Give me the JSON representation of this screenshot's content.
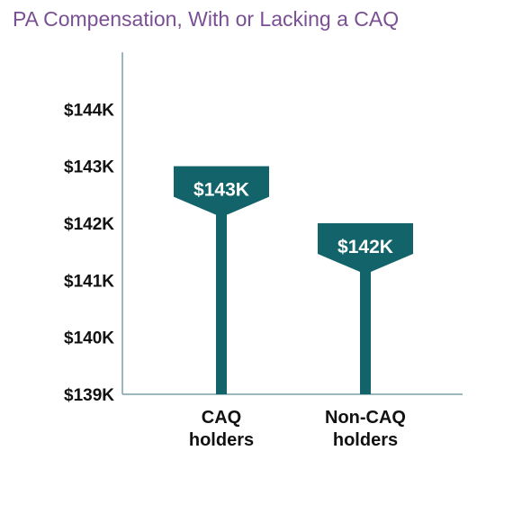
{
  "title": "PA Compensation, With or Lacking a CAQ",
  "chart_data": {
    "type": "bar",
    "title": "PA Compensation, With or Lacking a CAQ",
    "categories": [
      [
        "CAQ",
        "holders"
      ],
      [
        "Non-CAQ",
        "holders"
      ]
    ],
    "values": [
      143000,
      142000
    ],
    "data_labels": [
      "$143K",
      "$142K"
    ],
    "yticks": [
      139000,
      140000,
      141000,
      142000,
      143000,
      144000
    ],
    "ytick_labels": [
      "$139K",
      "$140K",
      "$141K",
      "$142K",
      "$143K",
      "$144K"
    ],
    "ylim": [
      139000,
      145000
    ],
    "xlabel": "",
    "ylabel": "",
    "grid": false,
    "colors": {
      "bar": "#13636a",
      "axis": "#7aa2a6",
      "title": "#7a4f93"
    }
  }
}
